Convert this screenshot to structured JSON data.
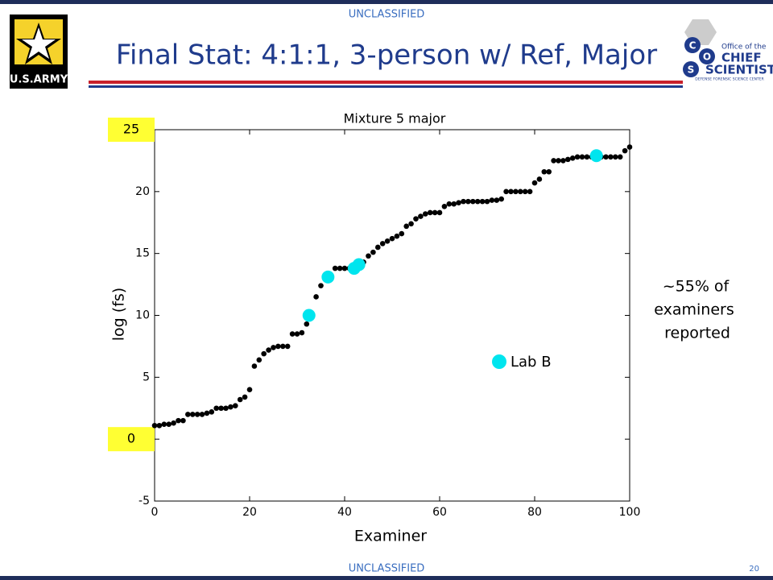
{
  "header": {
    "classification": "UNCLASSIFIED",
    "title": "Final Stat:  4:1:1, 3-person w/ Ref, Major",
    "army_logo": "U.S.ARMY",
    "ocs_letters": [
      "C",
      "O",
      "S"
    ],
    "ocs_lines": [
      "Office of the",
      "CHIEF",
      "SCIENTIST",
      "DEFENSE FORENSIC SCIENCE CENTER"
    ]
  },
  "footer": {
    "classification": "UNCLASSIFIED",
    "page": "20"
  },
  "note": [
    "~55% of",
    "examiners",
    "reported"
  ],
  "chart_data": {
    "type": "scatter",
    "title": "Mixture 5 major",
    "xlabel": "Examiner",
    "ylabel": "log (fs)",
    "xlim": [
      0,
      100
    ],
    "ylim": [
      -5,
      25
    ],
    "xticks": [
      0,
      20,
      40,
      60,
      80,
      100
    ],
    "yticks": [
      -5,
      0,
      5,
      10,
      15,
      20
    ],
    "y_annotations": [
      {
        "value": 25,
        "label": "25"
      },
      {
        "value": 0,
        "label": "0"
      }
    ],
    "series": [
      {
        "color": "#000000",
        "x": [
          0,
          1,
          2,
          3,
          4,
          5,
          6,
          7,
          8,
          9,
          10,
          11,
          12,
          13,
          14,
          15,
          16,
          17,
          18,
          19,
          20,
          21,
          22,
          23,
          24,
          25,
          26,
          27,
          28,
          29,
          30,
          31,
          32,
          33,
          34,
          35,
          36,
          37,
          38,
          39,
          40,
          41,
          42,
          43,
          44,
          45,
          46,
          47,
          48,
          49,
          50,
          51,
          52,
          53,
          54,
          55,
          56,
          57,
          58,
          59,
          60,
          61,
          62,
          63,
          64,
          65,
          66,
          67,
          68,
          69,
          70,
          71,
          72,
          73,
          74,
          75,
          76,
          77,
          78,
          79,
          80,
          81,
          82,
          83,
          84,
          85,
          86,
          87,
          88,
          89,
          90,
          91,
          92,
          93,
          94,
          95,
          96,
          97,
          98,
          99,
          100
        ],
        "values": [
          1.1,
          1.1,
          1.2,
          1.2,
          1.3,
          1.5,
          1.5,
          2.0,
          2.0,
          2.0,
          2.0,
          2.1,
          2.2,
          2.5,
          2.5,
          2.5,
          2.6,
          2.7,
          3.2,
          3.4,
          4.0,
          5.9,
          6.4,
          6.9,
          7.2,
          7.4,
          7.5,
          7.5,
          7.5,
          8.5,
          8.5,
          8.6,
          9.3,
          10.0,
          11.5,
          12.4,
          13.0,
          13.2,
          13.8,
          13.8,
          13.8,
          13.8,
          14.0,
          14.0,
          14.3,
          14.8,
          15.1,
          15.5,
          15.8,
          16.0,
          16.2,
          16.4,
          16.6,
          17.2,
          17.4,
          17.8,
          18.0,
          18.2,
          18.3,
          18.3,
          18.3,
          18.8,
          19.0,
          19.0,
          19.1,
          19.2,
          19.2,
          19.2,
          19.2,
          19.2,
          19.2,
          19.3,
          19.3,
          19.4,
          20.0,
          20.0,
          20.0,
          20.0,
          20.0,
          20.0,
          20.7,
          21.0,
          21.6,
          21.6,
          22.5,
          22.5,
          22.5,
          22.6,
          22.7,
          22.8,
          22.8,
          22.8,
          22.8,
          22.8,
          22.8,
          22.8,
          22.8,
          22.8,
          22.8,
          23.3,
          23.6
        ]
      },
      {
        "name": "Lab B",
        "color": "#00e5ee",
        "x": [
          32.5,
          36.5,
          42,
          43,
          93
        ],
        "values": [
          10.0,
          13.1,
          13.8,
          14.1,
          22.9
        ]
      }
    ]
  }
}
